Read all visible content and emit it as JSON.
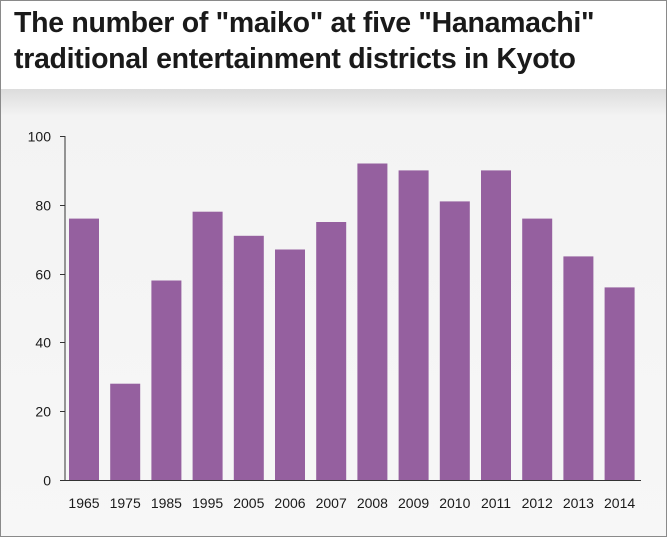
{
  "chart_data": {
    "type": "bar",
    "title_lines": [
      "The number of \"maiko\" at five \"Hanamachi\"",
      "traditional entertainment districts in Kyoto"
    ],
    "xlabel": "",
    "ylabel": "",
    "categories": [
      "1965",
      "1975",
      "1985",
      "1995",
      "2005",
      "2006",
      "2007",
      "2008",
      "2009",
      "2010",
      "2011",
      "2012",
      "2013",
      "2014"
    ],
    "values": [
      76,
      28,
      58,
      78,
      71,
      67,
      75,
      92,
      90,
      81,
      90,
      76,
      65,
      56
    ],
    "ylim": [
      0,
      100
    ],
    "yticks": [
      0,
      20,
      40,
      60,
      80,
      100
    ],
    "grid": false,
    "legend": "none",
    "bar_color": "#95609f",
    "axis_color": "#333333"
  }
}
